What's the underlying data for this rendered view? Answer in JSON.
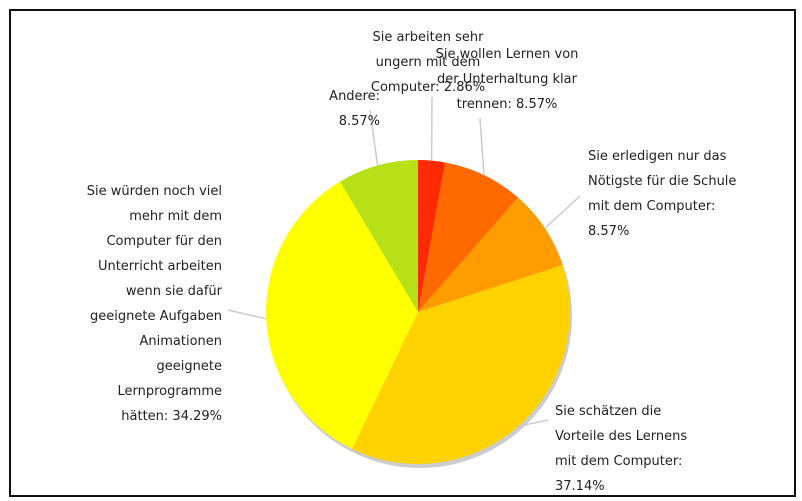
{
  "chart_data": {
    "type": "pie",
    "values": [
      2.86,
      8.57,
      8.57,
      37.14,
      34.29,
      8.57
    ],
    "value_labels": [
      "Sie arbeiten sehr\nungern mit dem\nComputer: 2.86%",
      "Sie wollen Lernen von\nder Unterhaltung klar\ntrennen: 8.57%",
      "Sie erledigen nur das\nNötigste für die Schule\nmit dem Computer:\n8.57%",
      "Sie schätzen die\nVorteile des Lernens\nmit dem Computer:\n37.14%",
      "Sie würden noch viel\nmehr mit dem\nComputer für den\nUnterricht arbeiten\nwenn sie dafür\ngeeignete Aufgaben\nAnimationen\ngeeignete\nLernprogramme\nhätten: 34.29%",
      "Andere: 8.57%"
    ],
    "colors": [
      "#ff2a00",
      "#ff6a00",
      "#ff9c00",
      "#ffd200",
      "#ffff00",
      "#b8e016"
    ]
  }
}
